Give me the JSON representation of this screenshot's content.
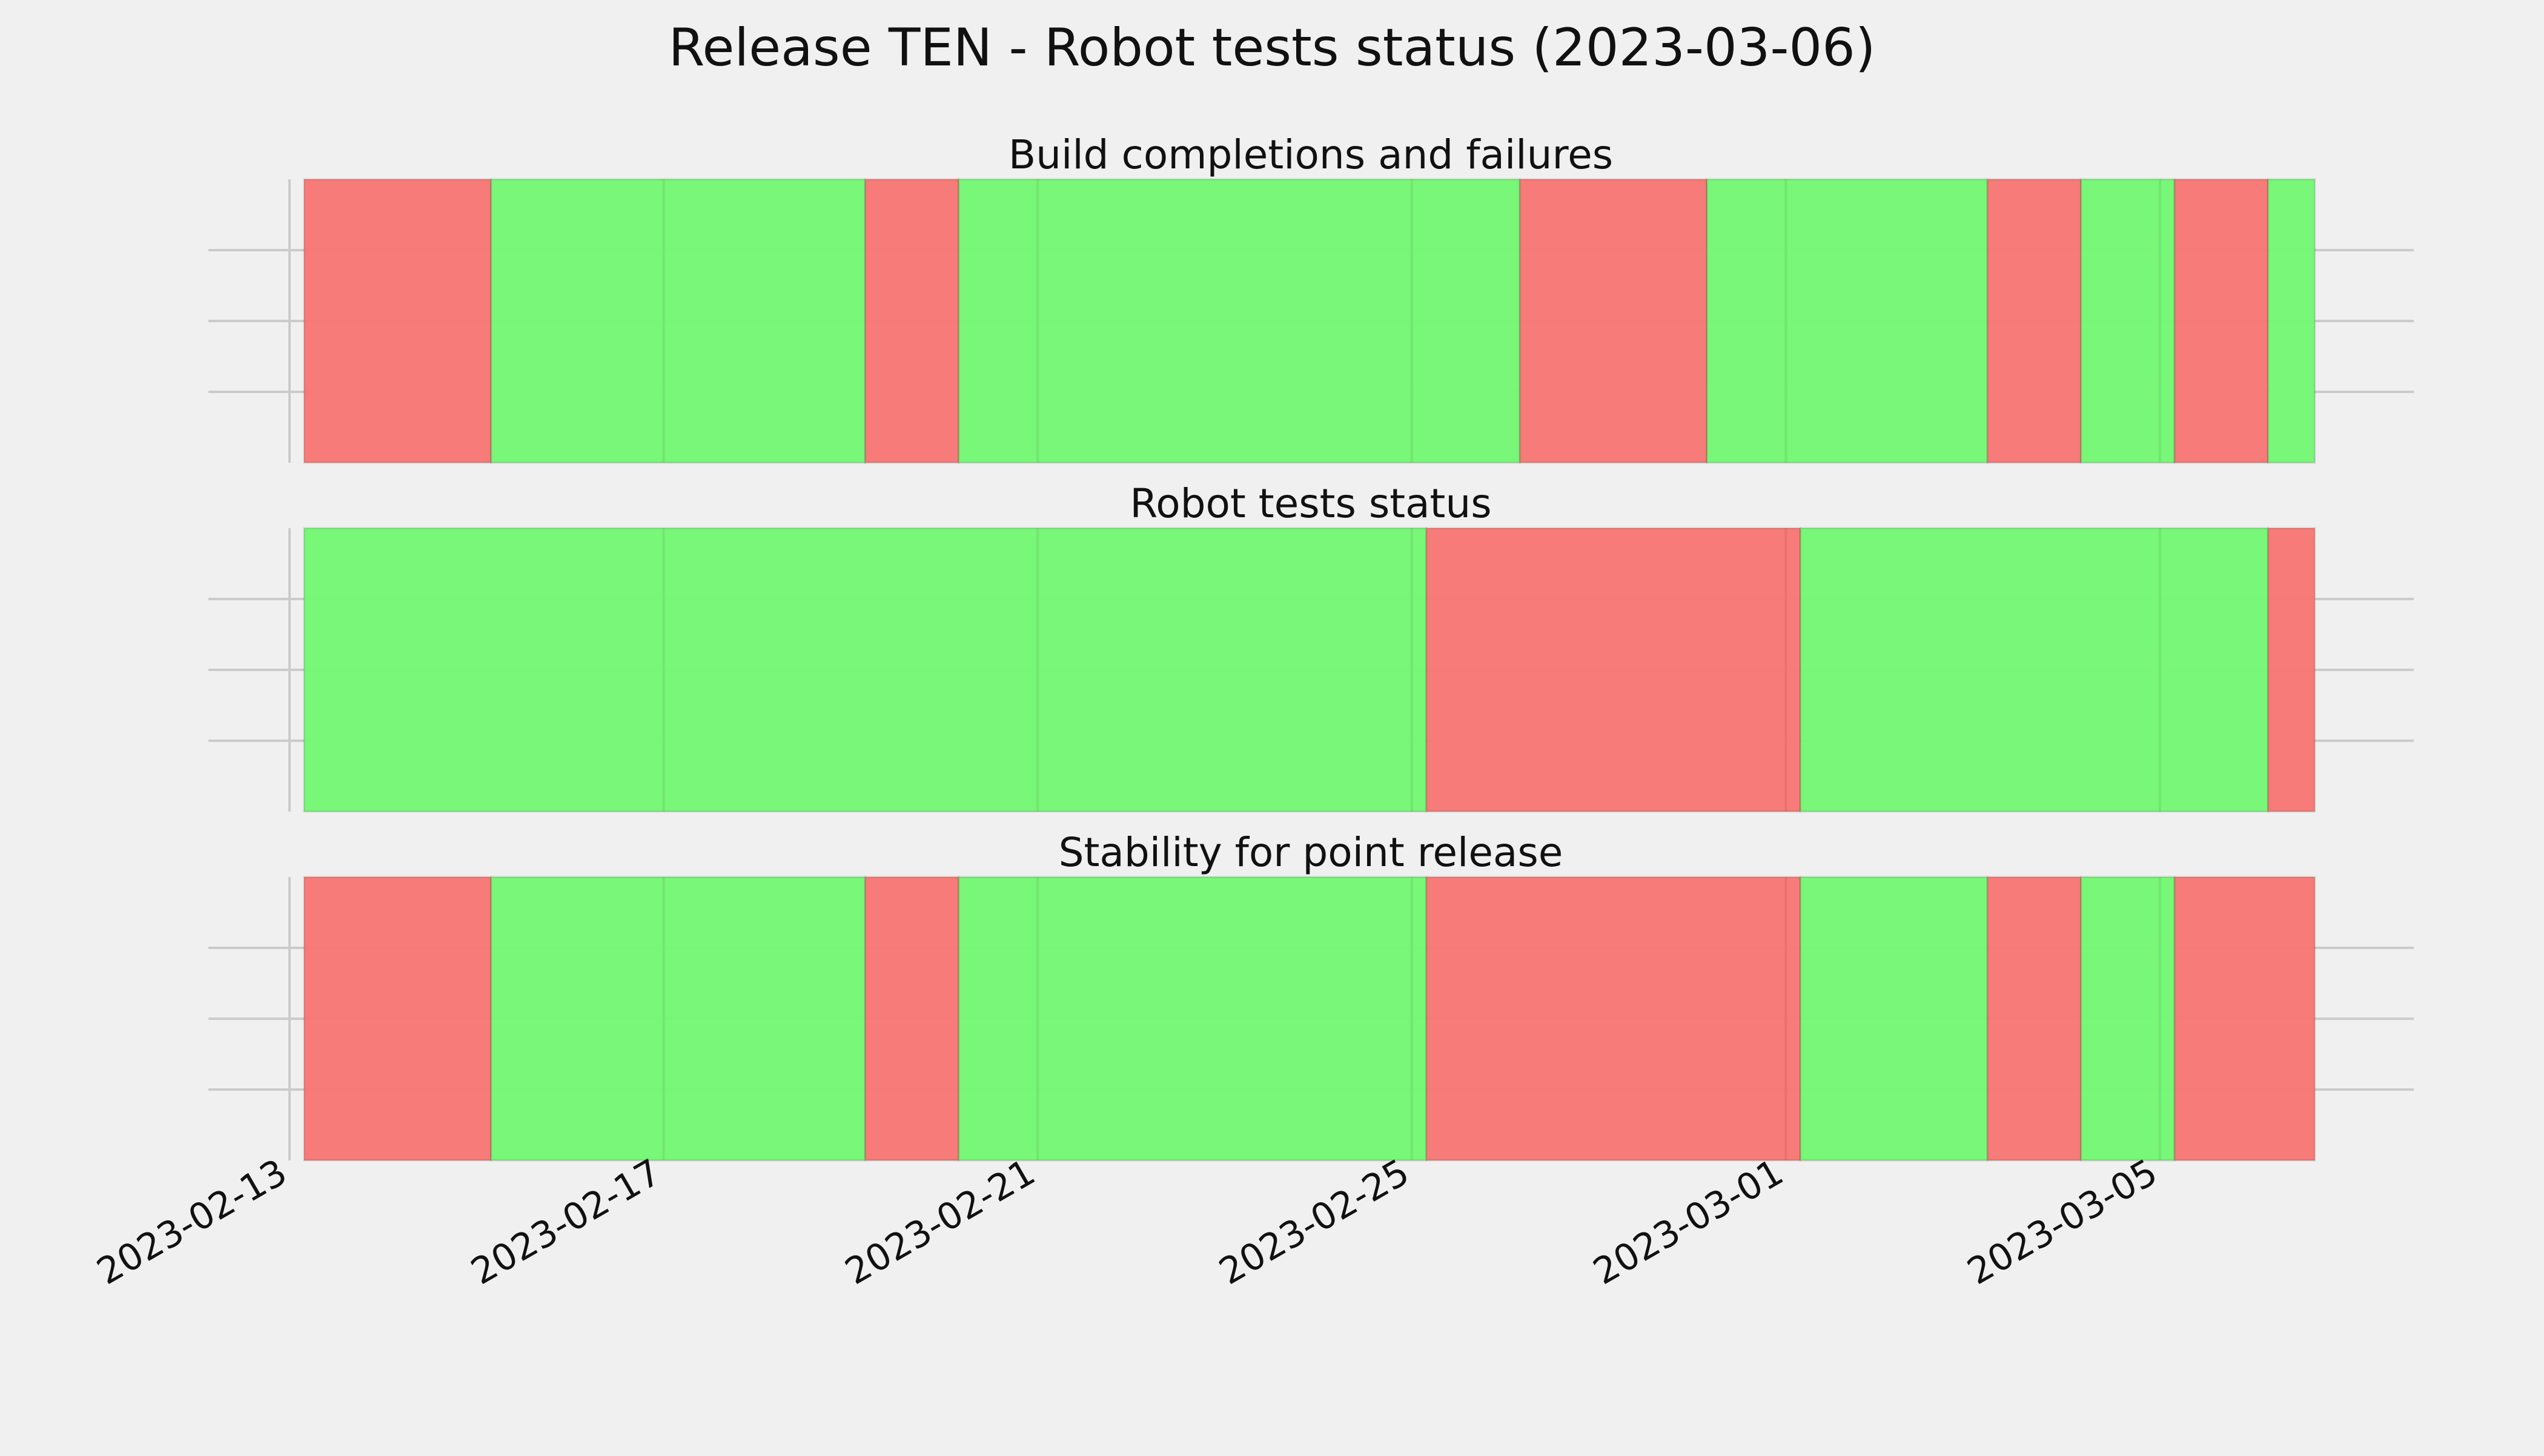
{
  "chart_data": {
    "type": "timeline-status",
    "title": "Release TEN - Robot tests status (2023-03-06)",
    "x_axis": {
      "range": [
        "2023-02-13",
        "2023-03-07"
      ],
      "ticks": [
        "2023-02-13",
        "2023-02-17",
        "2023-02-21",
        "2023-02-25",
        "2023-03-01",
        "2023-03-05"
      ]
    },
    "y_axis": {
      "tick_labels": [],
      "gridlines": 3
    },
    "grid": true,
    "colors": {
      "pass": "#74f774",
      "fail": "#f77774",
      "background": "#f0f0f0",
      "grid": "#cbcbcb"
    },
    "panels": [
      {
        "title": "Build completions and failures",
        "segments": [
          {
            "start": "2023-02-13",
            "end": "2023-02-15",
            "status": "fail"
          },
          {
            "start": "2023-02-15",
            "end": "2023-02-19",
            "status": "pass"
          },
          {
            "start": "2023-02-19",
            "end": "2023-02-20",
            "status": "fail"
          },
          {
            "start": "2023-02-20",
            "end": "2023-02-26",
            "status": "pass"
          },
          {
            "start": "2023-02-26",
            "end": "2023-02-28",
            "status": "fail"
          },
          {
            "start": "2023-02-28",
            "end": "2023-03-03",
            "status": "pass"
          },
          {
            "start": "2023-03-03",
            "end": "2023-03-04",
            "status": "fail"
          },
          {
            "start": "2023-03-04",
            "end": "2023-03-05",
            "status": "pass"
          },
          {
            "start": "2023-03-05",
            "end": "2023-03-06",
            "status": "fail"
          },
          {
            "start": "2023-03-06",
            "end": "2023-03-06T12:00",
            "status": "pass"
          }
        ]
      },
      {
        "title": "Robot tests status",
        "segments": [
          {
            "start": "2023-02-13",
            "end": "2023-02-25",
            "status": "pass"
          },
          {
            "start": "2023-02-25",
            "end": "2023-03-01",
            "status": "fail"
          },
          {
            "start": "2023-03-01",
            "end": "2023-03-06",
            "status": "pass"
          },
          {
            "start": "2023-03-06",
            "end": "2023-03-06T12:00",
            "status": "fail"
          }
        ]
      },
      {
        "title": "Stability for point release",
        "segments": [
          {
            "start": "2023-02-13",
            "end": "2023-02-15",
            "status": "fail"
          },
          {
            "start": "2023-02-15",
            "end": "2023-02-19",
            "status": "pass"
          },
          {
            "start": "2023-02-19",
            "end": "2023-02-20",
            "status": "fail"
          },
          {
            "start": "2023-02-20",
            "end": "2023-02-25",
            "status": "pass"
          },
          {
            "start": "2023-02-25",
            "end": "2023-03-01",
            "status": "fail"
          },
          {
            "start": "2023-03-01",
            "end": "2023-03-03",
            "status": "pass"
          },
          {
            "start": "2023-03-03",
            "end": "2023-03-04",
            "status": "fail"
          },
          {
            "start": "2023-03-04",
            "end": "2023-03-05",
            "status": "pass"
          },
          {
            "start": "2023-03-05",
            "end": "2023-03-06T12:00",
            "status": "fail"
          }
        ]
      }
    ]
  }
}
